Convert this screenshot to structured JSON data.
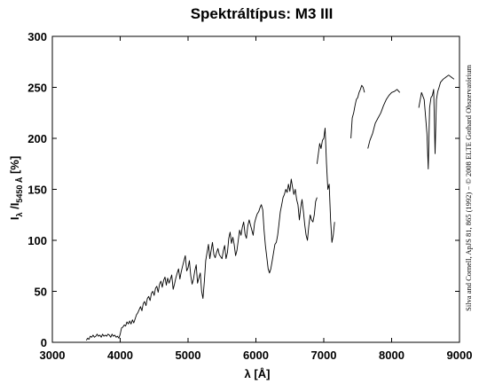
{
  "chart_data": {
    "type": "line",
    "title": "Spektráltípus: M3 III",
    "xlabel": "λ [Å]",
    "ylabel_main": "I",
    "ylabel_sub1": "λ",
    "ylabel_mid": " /I",
    "ylabel_sub2": "5450 Å",
    "ylabel_unit": " [%]",
    "xlim": [
      3000,
      9000
    ],
    "ylim": [
      0,
      300
    ],
    "xticks": [
      3000,
      4000,
      5000,
      6000,
      7000,
      8000,
      9000
    ],
    "yticks": [
      0,
      50,
      100,
      150,
      200,
      250,
      300
    ],
    "grid": false,
    "line_color": "#000000",
    "credit": "Silva and Cornell, ApJS 81, 865 (1992) − © 2008 ELTE Gothard Obszervatórium",
    "series": [
      {
        "x": [
          3500,
          3520,
          3540,
          3560,
          3580,
          3600,
          3620,
          3640,
          3660,
          3680,
          3700,
          3720,
          3740,
          3760,
          3780,
          3800,
          3820,
          3840,
          3860,
          3880,
          3900,
          3920,
          3940,
          3960,
          3980,
          4000,
          4020,
          4040,
          4060,
          4080,
          4100,
          4120,
          4140,
          4160,
          4180,
          4200,
          4220,
          4240,
          4260,
          4280,
          4300,
          4320,
          4340,
          4360,
          4380,
          4400,
          4420,
          4440,
          4460,
          4480,
          4500,
          4520,
          4540,
          4560,
          4580,
          4600,
          4620,
          4640,
          4660,
          4680,
          4700,
          4720,
          4740,
          4760,
          4780,
          4800,
          4820,
          4840,
          4860,
          4880,
          4900,
          4920,
          4940,
          4960,
          4980,
          5000,
          5020,
          5040,
          5060,
          5080,
          5100,
          5120,
          5140,
          5160,
          5180,
          5200,
          5220,
          5240,
          5260,
          5280,
          5300,
          5320,
          5340,
          5360,
          5380,
          5400,
          5420,
          5440,
          5460,
          5480,
          5500,
          5520,
          5540,
          5560,
          5580,
          5600,
          5620,
          5640,
          5660,
          5680,
          5700,
          5720,
          5740,
          5760,
          5780,
          5800,
          5820,
          5840,
          5860,
          5880,
          5900,
          5920,
          5940,
          5960,
          5980,
          6000,
          6020,
          6040,
          6060,
          6080,
          6100,
          6120,
          6140,
          6160,
          6180,
          6200,
          6220,
          6240,
          6260,
          6280,
          6300,
          6320,
          6340,
          6360,
          6380,
          6400,
          6420,
          6440,
          6460,
          6480,
          6500,
          6520,
          6540,
          6560,
          6580,
          6600,
          6620,
          6640,
          6660,
          6680,
          6700,
          6720,
          6740,
          6760,
          6780,
          6800,
          6820,
          6840,
          6860,
          6880,
          6900
        ],
        "y": [
          2,
          4,
          3,
          6,
          5,
          7,
          5,
          6,
          8,
          6,
          7,
          5,
          8,
          6,
          7,
          6,
          8,
          7,
          5,
          8,
          6,
          7,
          5,
          6,
          4,
          8,
          14,
          15,
          17,
          16,
          20,
          18,
          21,
          18,
          22,
          19,
          23,
          27,
          29,
          32,
          35,
          31,
          38,
          40,
          36,
          43,
          45,
          41,
          48,
          50,
          46,
          53,
          55,
          49,
          57,
          60,
          54,
          61,
          64,
          56,
          63,
          58,
          62,
          66,
          52,
          57,
          63,
          68,
          72,
          62,
          69,
          75,
          80,
          85,
          70,
          73,
          80,
          65,
          57,
          62,
          70,
          76,
          58,
          63,
          68,
          50,
          43,
          60,
          80,
          88,
          96,
          82,
          90,
          98,
          86,
          83,
          88,
          92,
          86,
          84,
          82,
          90,
          95,
          82,
          88,
          102,
          108,
          97,
          103,
          96,
          85,
          90,
          100,
          110,
          105,
          113,
          118,
          106,
          102,
          114,
          120,
          115,
          110,
          105,
          117,
          122,
          126,
          128,
          132,
          135,
          130,
          110,
          95,
          84,
          72,
          68,
          72,
          80,
          88,
          96,
          98,
          105,
          116,
          128,
          135,
          142,
          145,
          150,
          147,
          155,
          148,
          160,
          152,
          145,
          150,
          140,
          135,
          120,
          132,
          140,
          128,
          115,
          105,
          100,
          115,
          125,
          120,
          118,
          125,
          138,
          142
        ]
      },
      {
        "x": [
          6900,
          6920,
          6940,
          6960,
          6980,
          7000,
          7020,
          7040,
          7060,
          7080,
          7100,
          7120,
          7140,
          7160
        ],
        "y": [
          175,
          185,
          195,
          190,
          198,
          200,
          210,
          175,
          150,
          155,
          120,
          98,
          105,
          118
        ]
      },
      {
        "x": [
          7400,
          7420,
          7440,
          7460,
          7480,
          7500,
          7520,
          7540,
          7560,
          7580,
          7600
        ],
        "y": [
          200,
          220,
          225,
          232,
          238,
          240,
          245,
          248,
          252,
          250,
          245
        ]
      },
      {
        "x": [
          7650,
          7680,
          7720,
          7760,
          7800,
          7840,
          7880,
          7920,
          7960,
          8000,
          8040,
          8080,
          8120
        ],
        "y": [
          190,
          198,
          205,
          215,
          220,
          225,
          232,
          238,
          242,
          245,
          246,
          248,
          245
        ]
      },
      {
        "x": [
          8400,
          8440,
          8480,
          8520,
          8540,
          8560,
          8580,
          8600,
          8620,
          8640,
          8660,
          8680,
          8700,
          8720,
          8760,
          8800,
          8840,
          8880,
          8920
        ],
        "y": [
          230,
          245,
          238,
          205,
          170,
          230,
          240,
          242,
          248,
          185,
          238,
          246,
          250,
          255,
          258,
          260,
          262,
          260,
          258
        ]
      }
    ]
  }
}
